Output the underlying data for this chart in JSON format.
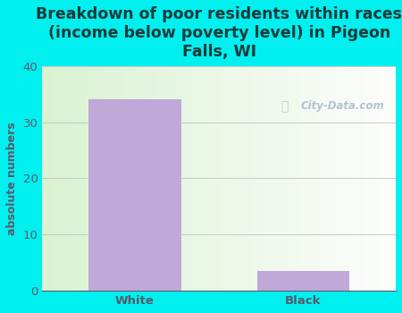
{
  "categories": [
    "White",
    "Black"
  ],
  "values": [
    34,
    3.5
  ],
  "bar_color": "#c0a8d8",
  "title": "Breakdown of poor residents within races\n(income below poverty level) in Pigeon\nFalls, WI",
  "ylabel": "absolute numbers",
  "ylim": [
    0,
    40
  ],
  "yticks": [
    0,
    10,
    20,
    30,
    40
  ],
  "bg_color": "#00f0f0",
  "title_color": "#1a3a3a",
  "axis_color": "#5a5a6a",
  "tick_color": "#5a5a6a",
  "grid_color": "#c8c8c8",
  "watermark_text": "City-Data.com",
  "title_fontsize": 12.5,
  "label_fontsize": 9,
  "tick_fontsize": 9.5
}
